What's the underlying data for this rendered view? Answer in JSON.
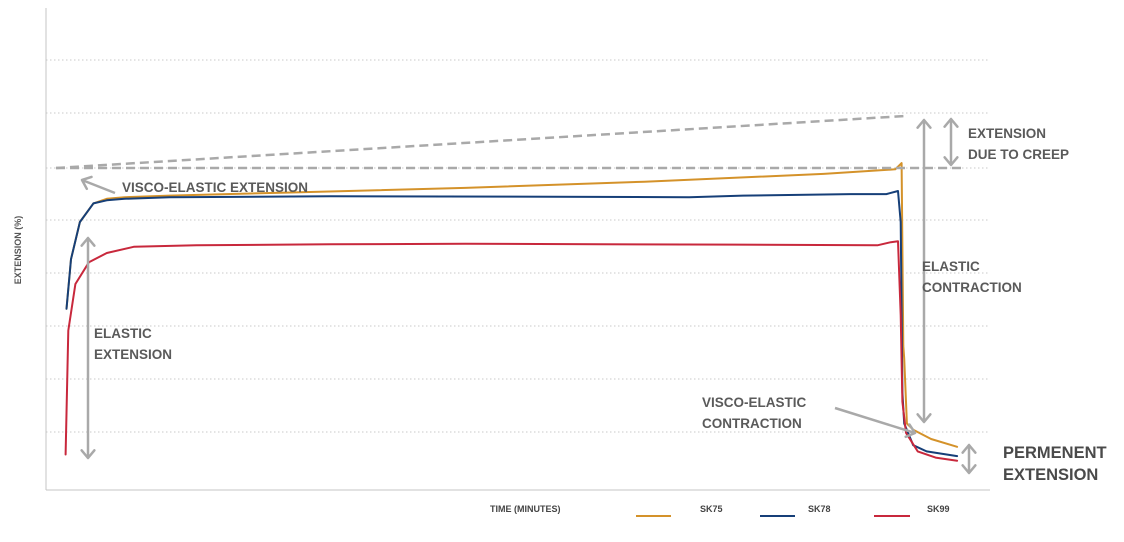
{
  "chart_data": {
    "type": "line",
    "title": "",
    "xlabel": "TIME (MINUTES)",
    "ylabel": "EXTENSION (%)",
    "xlim": [
      0,
      100
    ],
    "ylim": [
      0,
      100
    ],
    "grid": true,
    "x_ticks_shown": false,
    "y_ticks_shown": false,
    "legend_position": "bottom",
    "colors": {
      "SK75": "#d4922a",
      "SK78": "#163f78",
      "SK99": "#c8283c",
      "annotation": "#a9a9a9"
    },
    "series": [
      {
        "name": "SK75",
        "color": "#d4922a",
        "points": [
          [
            0.5,
            52
          ],
          [
            1,
            68
          ],
          [
            2,
            80
          ],
          [
            3.5,
            86
          ],
          [
            5,
            87.5
          ],
          [
            7,
            88
          ],
          [
            12,
            88.5
          ],
          [
            25,
            89.5
          ],
          [
            45,
            91
          ],
          [
            65,
            93
          ],
          [
            85,
            95.5
          ],
          [
            93,
            97
          ],
          [
            93.7,
            99
          ],
          [
            93.9,
            40
          ],
          [
            94,
            36
          ],
          [
            94.3,
            15
          ],
          [
            95,
            13
          ],
          [
            97,
            10
          ],
          [
            99.9,
            7.5
          ]
        ]
      },
      {
        "name": "SK78",
        "color": "#163f78",
        "points": [
          [
            0.5,
            52
          ],
          [
            1,
            68
          ],
          [
            2,
            80
          ],
          [
            3.5,
            86
          ],
          [
            5,
            87
          ],
          [
            7,
            87.5
          ],
          [
            12,
            88
          ],
          [
            30,
            88.3
          ],
          [
            50,
            88.2
          ],
          [
            70,
            88
          ],
          [
            76,
            88.5
          ],
          [
            88,
            89
          ],
          [
            92,
            89
          ],
          [
            93.3,
            90
          ],
          [
            93.6,
            80
          ],
          [
            93.8,
            25
          ],
          [
            94,
            15
          ],
          [
            95,
            8
          ],
          [
            96.5,
            6
          ],
          [
            99.9,
            4.5
          ]
        ]
      },
      {
        "name": "SK99",
        "color": "#c8283c",
        "points": [
          [
            0.4,
            5
          ],
          [
            0.7,
            45
          ],
          [
            1.5,
            60
          ],
          [
            3,
            67
          ],
          [
            5,
            70
          ],
          [
            8,
            72
          ],
          [
            15,
            72.5
          ],
          [
            30,
            72.8
          ],
          [
            45,
            73
          ],
          [
            60,
            72.8
          ],
          [
            75,
            72.7
          ],
          [
            91,
            72.5
          ],
          [
            92.5,
            73.5
          ],
          [
            93.3,
            73.8
          ],
          [
            93.6,
            50
          ],
          [
            93.8,
            22
          ],
          [
            94.2,
            12
          ],
          [
            95.5,
            6
          ],
          [
            97.5,
            4
          ],
          [
            99.9,
            3
          ]
        ]
      }
    ],
    "annotations": [
      {
        "id": "elastic_extension",
        "lines": [
          "ELASTIC",
          "EXTENSION"
        ]
      },
      {
        "id": "visco_elastic_extension",
        "lines": [
          "VISCO-ELASTIC EXTENSION"
        ]
      },
      {
        "id": "extension_due_to_creep",
        "lines": [
          "EXTENSION",
          "DUE TO CREEP"
        ]
      },
      {
        "id": "elastic_contraction",
        "lines": [
          "ELASTIC",
          "CONTRACTION"
        ]
      },
      {
        "id": "visco_elastic_contraction",
        "lines": [
          "VISCO-ELASTIC",
          "CONTRACTION"
        ]
      },
      {
        "id": "permanent_extension",
        "lines": [
          "PERMENENT",
          "EXTENSION"
        ]
      }
    ]
  }
}
